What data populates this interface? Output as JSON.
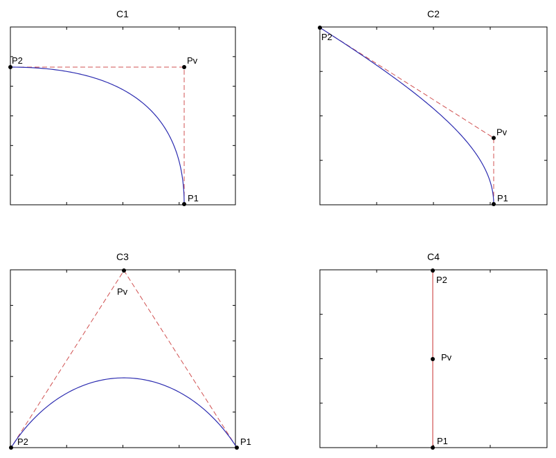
{
  "colors": {
    "curve": "#2b2bb0",
    "control_polygon": "#d05050",
    "axes": "#000000",
    "points": "#000000"
  },
  "panels": [
    {
      "title": "C1",
      "points": [
        {
          "label": "P1",
          "x": 0.0,
          "y": -1.0
        },
        {
          "label": "Pv",
          "x": 0.0,
          "y": 0.0
        },
        {
          "label": "P2",
          "x": -1.0,
          "y": 0.0
        }
      ],
      "control_polygon": [
        "P1",
        "Pv",
        "P2"
      ],
      "curve_weight": 1.0
    },
    {
      "title": "C2",
      "points": [
        {
          "label": "P1",
          "x": 0.0,
          "y": -1.0
        },
        {
          "label": "Pv",
          "x": 0.0,
          "y": -0.4
        },
        {
          "label": "P2",
          "x": -1.0,
          "y": 0.6
        }
      ],
      "control_polygon": [
        "P1",
        "Pv",
        "P2"
      ],
      "curve_weight": 1.2
    },
    {
      "title": "C3",
      "points": [
        {
          "label": "P1",
          "x": 1.0,
          "y": 0.0
        },
        {
          "label": "Pv",
          "x": 0.0,
          "y": 1.0
        },
        {
          "label": "P2",
          "x": -1.0,
          "y": 0.0
        }
      ],
      "control_polygon": [
        "P1",
        "Pv",
        "P2"
      ],
      "curve_weight": 0.65
    },
    {
      "title": "C4",
      "points": [
        {
          "label": "P1",
          "x": 0.0,
          "y": -1.0
        },
        {
          "label": "Pv",
          "x": 0.0,
          "y": 0.0
        },
        {
          "label": "P2",
          "x": 0.0,
          "y": 1.0
        }
      ],
      "control_polygon": [
        "P1",
        "Pv",
        "P2"
      ],
      "curve_weight": 1.0
    }
  ]
}
